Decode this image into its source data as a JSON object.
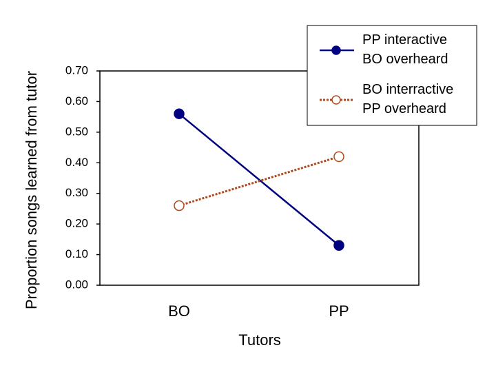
{
  "chart_data": {
    "type": "line",
    "x_label": "Tutors",
    "y_label": "Proportion songs learned from tutor",
    "categories": [
      "BO",
      "PP"
    ],
    "series": [
      {
        "name": "PP interactive\nBO  overheard",
        "color": "#000080",
        "style": "solid",
        "marker": "filled",
        "values": [
          0.56,
          0.13
        ]
      },
      {
        "name": "BO interractive\nPP overheard",
        "color": "#b04a1c",
        "style": "dotted",
        "marker": "open",
        "values": [
          0.26,
          0.42
        ]
      }
    ],
    "ylim": [
      0,
      0.7
    ],
    "yticks": [
      {
        "value": 0,
        "label": "0.00"
      },
      {
        "value": 0.1,
        "label": "0.10"
      },
      {
        "value": 0.2,
        "label": "0.20"
      },
      {
        "value": 0.3,
        "label": "0.30"
      },
      {
        "value": 0.4,
        "label": "0.40"
      },
      {
        "value": 0.5,
        "label": "0.50"
      },
      {
        "value": 0.6,
        "label": "0.60"
      },
      {
        "value": 0.7,
        "label": "0.70"
      }
    ],
    "grid": false,
    "legend": "top-right"
  }
}
